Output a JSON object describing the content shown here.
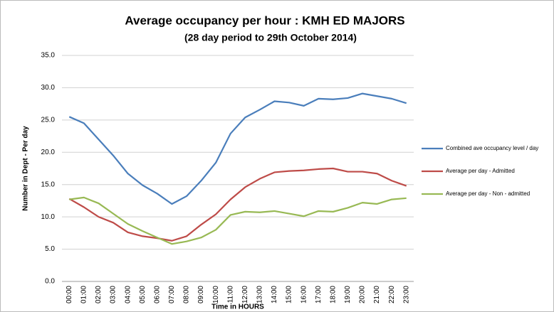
{
  "chart_data": {
    "type": "line",
    "title": "Average occupancy per hour : KMH ED MAJORS",
    "subtitle": "(28 day period to 29th October 2014)",
    "y_label": "Number in Dept  - Per day",
    "x_label": "Time in HOURS",
    "categories": [
      "00:00",
      "01:00",
      "02:00",
      "03:00",
      "04:00",
      "05:00",
      "06:00",
      "07:00",
      "08:00",
      "09:00",
      "10:00",
      "11:00",
      "12:00",
      "13:00",
      "14:00",
      "15:00",
      "16:00",
      "17:00",
      "18:00",
      "19:00",
      "20:00",
      "21:00",
      "22:00",
      "23:00"
    ],
    "series": [
      {
        "name": "Combined ave occupancy level / day",
        "color": "#4a7ebb",
        "values": [
          25.5,
          24.5,
          22.0,
          19.5,
          16.7,
          14.9,
          13.6,
          12.0,
          13.2,
          15.6,
          18.4,
          22.9,
          25.4,
          26.6,
          27.9,
          27.7,
          27.2,
          28.3,
          28.2,
          28.4,
          29.1,
          28.7,
          28.3,
          27.6
        ]
      },
      {
        "name": "Average per day - Admitted",
        "color": "#be4b48",
        "values": [
          12.8,
          11.5,
          10.0,
          9.1,
          7.6,
          7.0,
          6.7,
          6.3,
          7.0,
          8.8,
          10.4,
          12.7,
          14.6,
          15.9,
          16.9,
          17.1,
          17.2,
          17.4,
          17.5,
          17.0,
          17.0,
          16.7,
          15.6,
          14.8
        ]
      },
      {
        "name": "Average per day - Non - admitted",
        "color": "#98b954",
        "values": [
          12.7,
          13.0,
          12.1,
          10.5,
          8.9,
          7.8,
          6.8,
          5.8,
          6.2,
          6.8,
          8.0,
          10.3,
          10.8,
          10.7,
          10.9,
          10.5,
          10.1,
          10.9,
          10.8,
          11.4,
          12.2,
          12.0,
          12.7,
          12.9
        ]
      }
    ],
    "ylim": [
      0,
      35
    ],
    "yticks": [
      {
        "value": 0,
        "label": "0.0"
      },
      {
        "value": 5,
        "label": "5.0"
      },
      {
        "value": 10,
        "label": "10.0"
      },
      {
        "value": 15,
        "label": "15.0"
      },
      {
        "value": 20,
        "label": "20.0"
      },
      {
        "value": 25,
        "label": "25.0"
      },
      {
        "value": 30,
        "label": "30.0"
      },
      {
        "value": 35,
        "label": "35.0"
      }
    ],
    "grid": true,
    "legend": "right"
  }
}
